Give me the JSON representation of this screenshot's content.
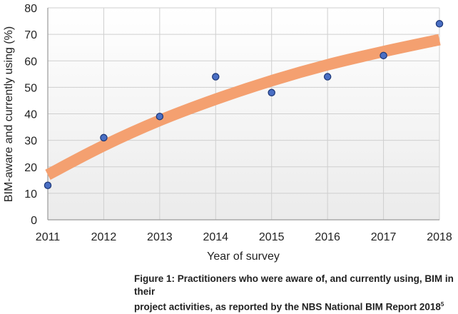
{
  "chart_data": {
    "type": "scatter",
    "x": [
      2011,
      2012,
      2013,
      2014,
      2015,
      2016,
      2017,
      2018
    ],
    "y": [
      13,
      31,
      39,
      54,
      48,
      54,
      62,
      74
    ],
    "xlabel": "Year of survey",
    "ylabel": "BIM-aware and currently using (%)",
    "xlim": [
      2011,
      2018
    ],
    "ylim": [
      0,
      80
    ],
    "x_ticks": [
      "2011",
      "2012",
      "2013",
      "2014",
      "2015",
      "2016",
      "2017",
      "2018"
    ],
    "y_ticks": [
      "0",
      "10",
      "20",
      "30",
      "40",
      "50",
      "60",
      "70",
      "80"
    ],
    "grid": true,
    "trend": {
      "x": [
        2011,
        2012,
        2013,
        2014,
        2015,
        2016,
        2017,
        2018
      ],
      "y": [
        17,
        28,
        37.5,
        45.5,
        52.5,
        58.5,
        63.5,
        68
      ]
    },
    "colors": {
      "point_fill": "#4a6fc4",
      "point_stroke": "#1f3a7a",
      "trend": "#f4a070",
      "grid": "#cfcfcf"
    }
  },
  "caption": {
    "line1": "Figure 1: Practitioners who were aware of, and currently using, BIM in their",
    "line2": "project activities, as reported by the NBS National BIM Report 2018",
    "superscript": "5"
  }
}
